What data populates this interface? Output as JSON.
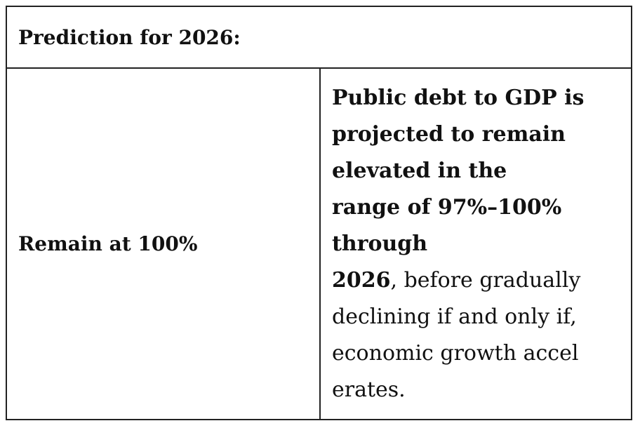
{
  "header": {
    "title": "Prediction for 2026:"
  },
  "table": {
    "rows": [
      {
        "label": "Remain at 100%",
        "bold": "Public debt to GDP is\nprojected to remain\nelevated in the\nrange of 97%–100%\nthrough\n2026",
        "regular": ", before gradually\ndeclining if and only if,\neconomic growth accel\nerates."
      }
    ]
  }
}
